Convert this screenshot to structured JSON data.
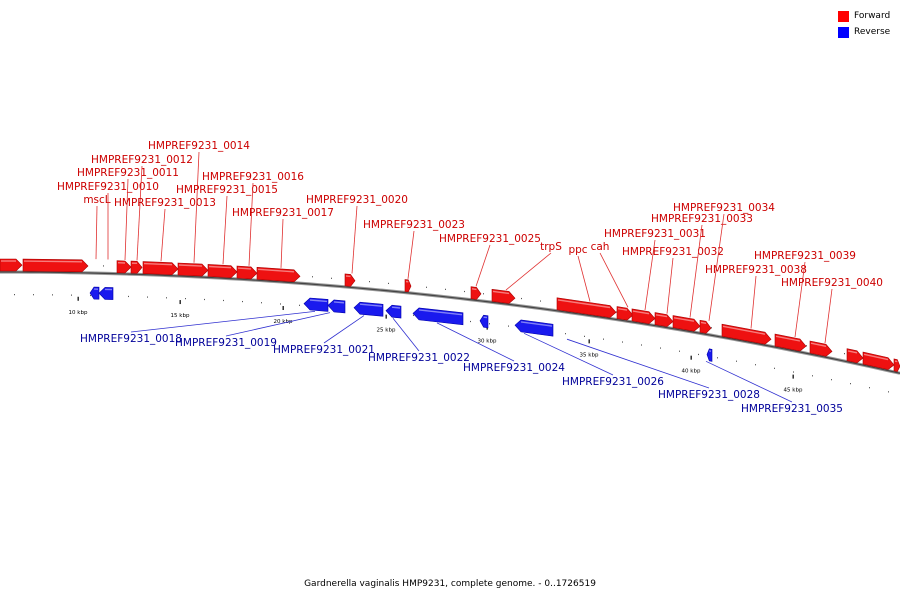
{
  "legend": {
    "items": [
      {
        "label": "Forward",
        "color": "#ff0000"
      },
      {
        "label": "Reverse",
        "color": "#0000ff"
      }
    ]
  },
  "caption": "Gardnerella vaginalis HMP9231, complete genome. - 0..1726519",
  "colors": {
    "forward": "#ee1111",
    "reverse": "#1a1aee",
    "forward_label": "#cc0000",
    "reverse_label": "#000099",
    "backbone": "#888888"
  },
  "scale": {
    "labels": [
      "10 kbp",
      "15 kbp",
      "20 kbp",
      "25 kbp",
      "30 kbp",
      "35 kbp",
      "40 kbp",
      "45 kbp"
    ]
  },
  "genes": [
    {
      "name": "mscL",
      "strand": "forward"
    },
    {
      "name": "HMPREF9231_0010",
      "strand": "forward"
    },
    {
      "name": "HMPREF9231_0011",
      "strand": "forward"
    },
    {
      "name": "HMPREF9231_0012",
      "strand": "forward"
    },
    {
      "name": "HMPREF9231_0013",
      "strand": "forward"
    },
    {
      "name": "HMPREF9231_0014",
      "strand": "forward"
    },
    {
      "name": "HMPREF9231_0015",
      "strand": "forward"
    },
    {
      "name": "HMPREF9231_0016",
      "strand": "forward"
    },
    {
      "name": "HMPREF9231_0017",
      "strand": "forward"
    },
    {
      "name": "HMPREF9231_0018",
      "strand": "reverse"
    },
    {
      "name": "HMPREF9231_0019",
      "strand": "reverse"
    },
    {
      "name": "HMPREF9231_0020",
      "strand": "forward"
    },
    {
      "name": "HMPREF9231_0021",
      "strand": "reverse"
    },
    {
      "name": "HMPREF9231_0022",
      "strand": "reverse"
    },
    {
      "name": "HMPREF9231_0023",
      "strand": "forward"
    },
    {
      "name": "HMPREF9231_0024",
      "strand": "reverse"
    },
    {
      "name": "HMPREF9231_0025",
      "strand": "forward"
    },
    {
      "name": "HMPREF9231_0026",
      "strand": "reverse"
    },
    {
      "name": "trpS",
      "strand": "forward"
    },
    {
      "name": "ppc",
      "strand": "forward"
    },
    {
      "name": "cah",
      "strand": "forward"
    },
    {
      "name": "HMPREF9231_0028",
      "strand": "reverse"
    },
    {
      "name": "HMPREF9231_0031",
      "strand": "forward"
    },
    {
      "name": "HMPREF9231_0032",
      "strand": "forward"
    },
    {
      "name": "HMPREF9231_0033",
      "strand": "forward"
    },
    {
      "name": "HMPREF9231_0034",
      "strand": "forward"
    },
    {
      "name": "HMPREF9231_0035",
      "strand": "reverse"
    },
    {
      "name": "HMPREF9231_0038",
      "strand": "forward"
    },
    {
      "name": "HMPREF9231_0039",
      "strand": "forward"
    },
    {
      "name": "HMPREF9231_0040",
      "strand": "forward"
    }
  ]
}
